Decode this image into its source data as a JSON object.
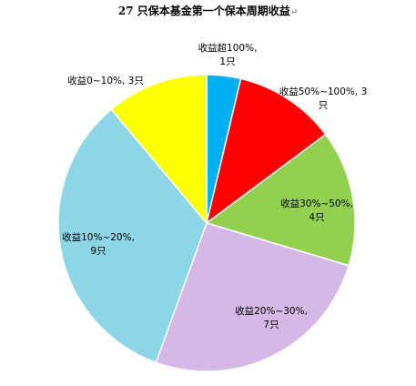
{
  "chart_data": {
    "type": "pie",
    "title": "27 只保本基金第一个保本周期收益",
    "title_mark": "↵",
    "legend": "none",
    "slices": [
      {
        "label_line1": "收益超100%,",
        "label_line2": "1只",
        "name": "收益超100%",
        "value": 1,
        "color": "#00B0F0"
      },
      {
        "label_line1": "收益50%~100%, 3",
        "label_line2": "只",
        "name": "收益50%~100%",
        "value": 3,
        "color": "#FF0000"
      },
      {
        "label_line1": "收益30%~50%,",
        "label_line2": "4只",
        "name": "收益30%~50%",
        "value": 4,
        "color": "#92D050"
      },
      {
        "label_line1": "收益20%~30%,",
        "label_line2": "7只",
        "name": "收益20%~30%",
        "value": 7,
        "color": "#D5B8E6"
      },
      {
        "label_line1": "收益10%~20%,",
        "label_line2": "9只",
        "name": "收益10%~20%",
        "value": 9,
        "color": "#8DD6E8"
      },
      {
        "label_line1": "收益0~10%, 3只",
        "label_line2": "",
        "name": "收益0~10%",
        "value": 3,
        "color": "#FFFF00"
      }
    ]
  }
}
